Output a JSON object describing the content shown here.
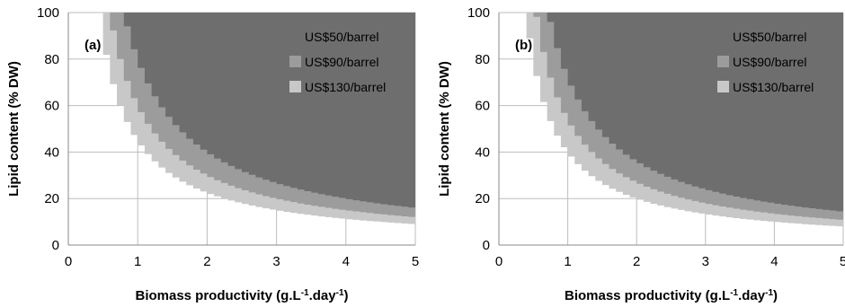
{
  "chart_data": [
    {
      "type": "area",
      "panel_label": "(a)",
      "xlabel": "Biomass productivity (g.L",
      "xlabel_sup1": "-1",
      "xlabel_mid": ".day",
      "xlabel_sup2": "-1",
      "xlabel_end": ")",
      "ylabel": "Lipid content (% DW)",
      "xlim": [
        0,
        5
      ],
      "ylim": [
        0,
        100
      ],
      "xticks": [
        "0",
        "1",
        "2",
        "3",
        "4",
        "5"
      ],
      "yticks": [
        "0",
        "20",
        "40",
        "60",
        "80",
        "100"
      ],
      "grid": true,
      "legend_position": "top-right",
      "series": [
        {
          "name": "US$130/barrel",
          "color": "#c8c8c8",
          "k": 45
        },
        {
          "name": "US$90/barrel",
          "color": "#9c9c9c",
          "k": 60
        },
        {
          "name": "US$50/barrel",
          "color": "#6e6e6e",
          "k": 80
        }
      ]
    },
    {
      "type": "area",
      "panel_label": "(b)",
      "xlabel": "Biomass productivity (g.L",
      "xlabel_sup1": "-1",
      "xlabel_mid": ".day",
      "xlabel_sup2": "-1",
      "xlabel_end": ")",
      "ylabel": "Lipid content (% DW)",
      "xlim": [
        0,
        5
      ],
      "ylim": [
        0,
        100
      ],
      "xticks": [
        "0",
        "1",
        "2",
        "3",
        "4",
        "5"
      ],
      "yticks": [
        "0",
        "20",
        "40",
        "60",
        "80",
        "100"
      ],
      "grid": true,
      "legend_position": "top-right",
      "series": [
        {
          "name": "US$130/barrel",
          "color": "#c8c8c8",
          "k": 40
        },
        {
          "name": "US$90/barrel",
          "color": "#9c9c9c",
          "k": 54
        },
        {
          "name": "US$50/barrel",
          "color": "#6e6e6e",
          "k": 72
        }
      ]
    }
  ]
}
